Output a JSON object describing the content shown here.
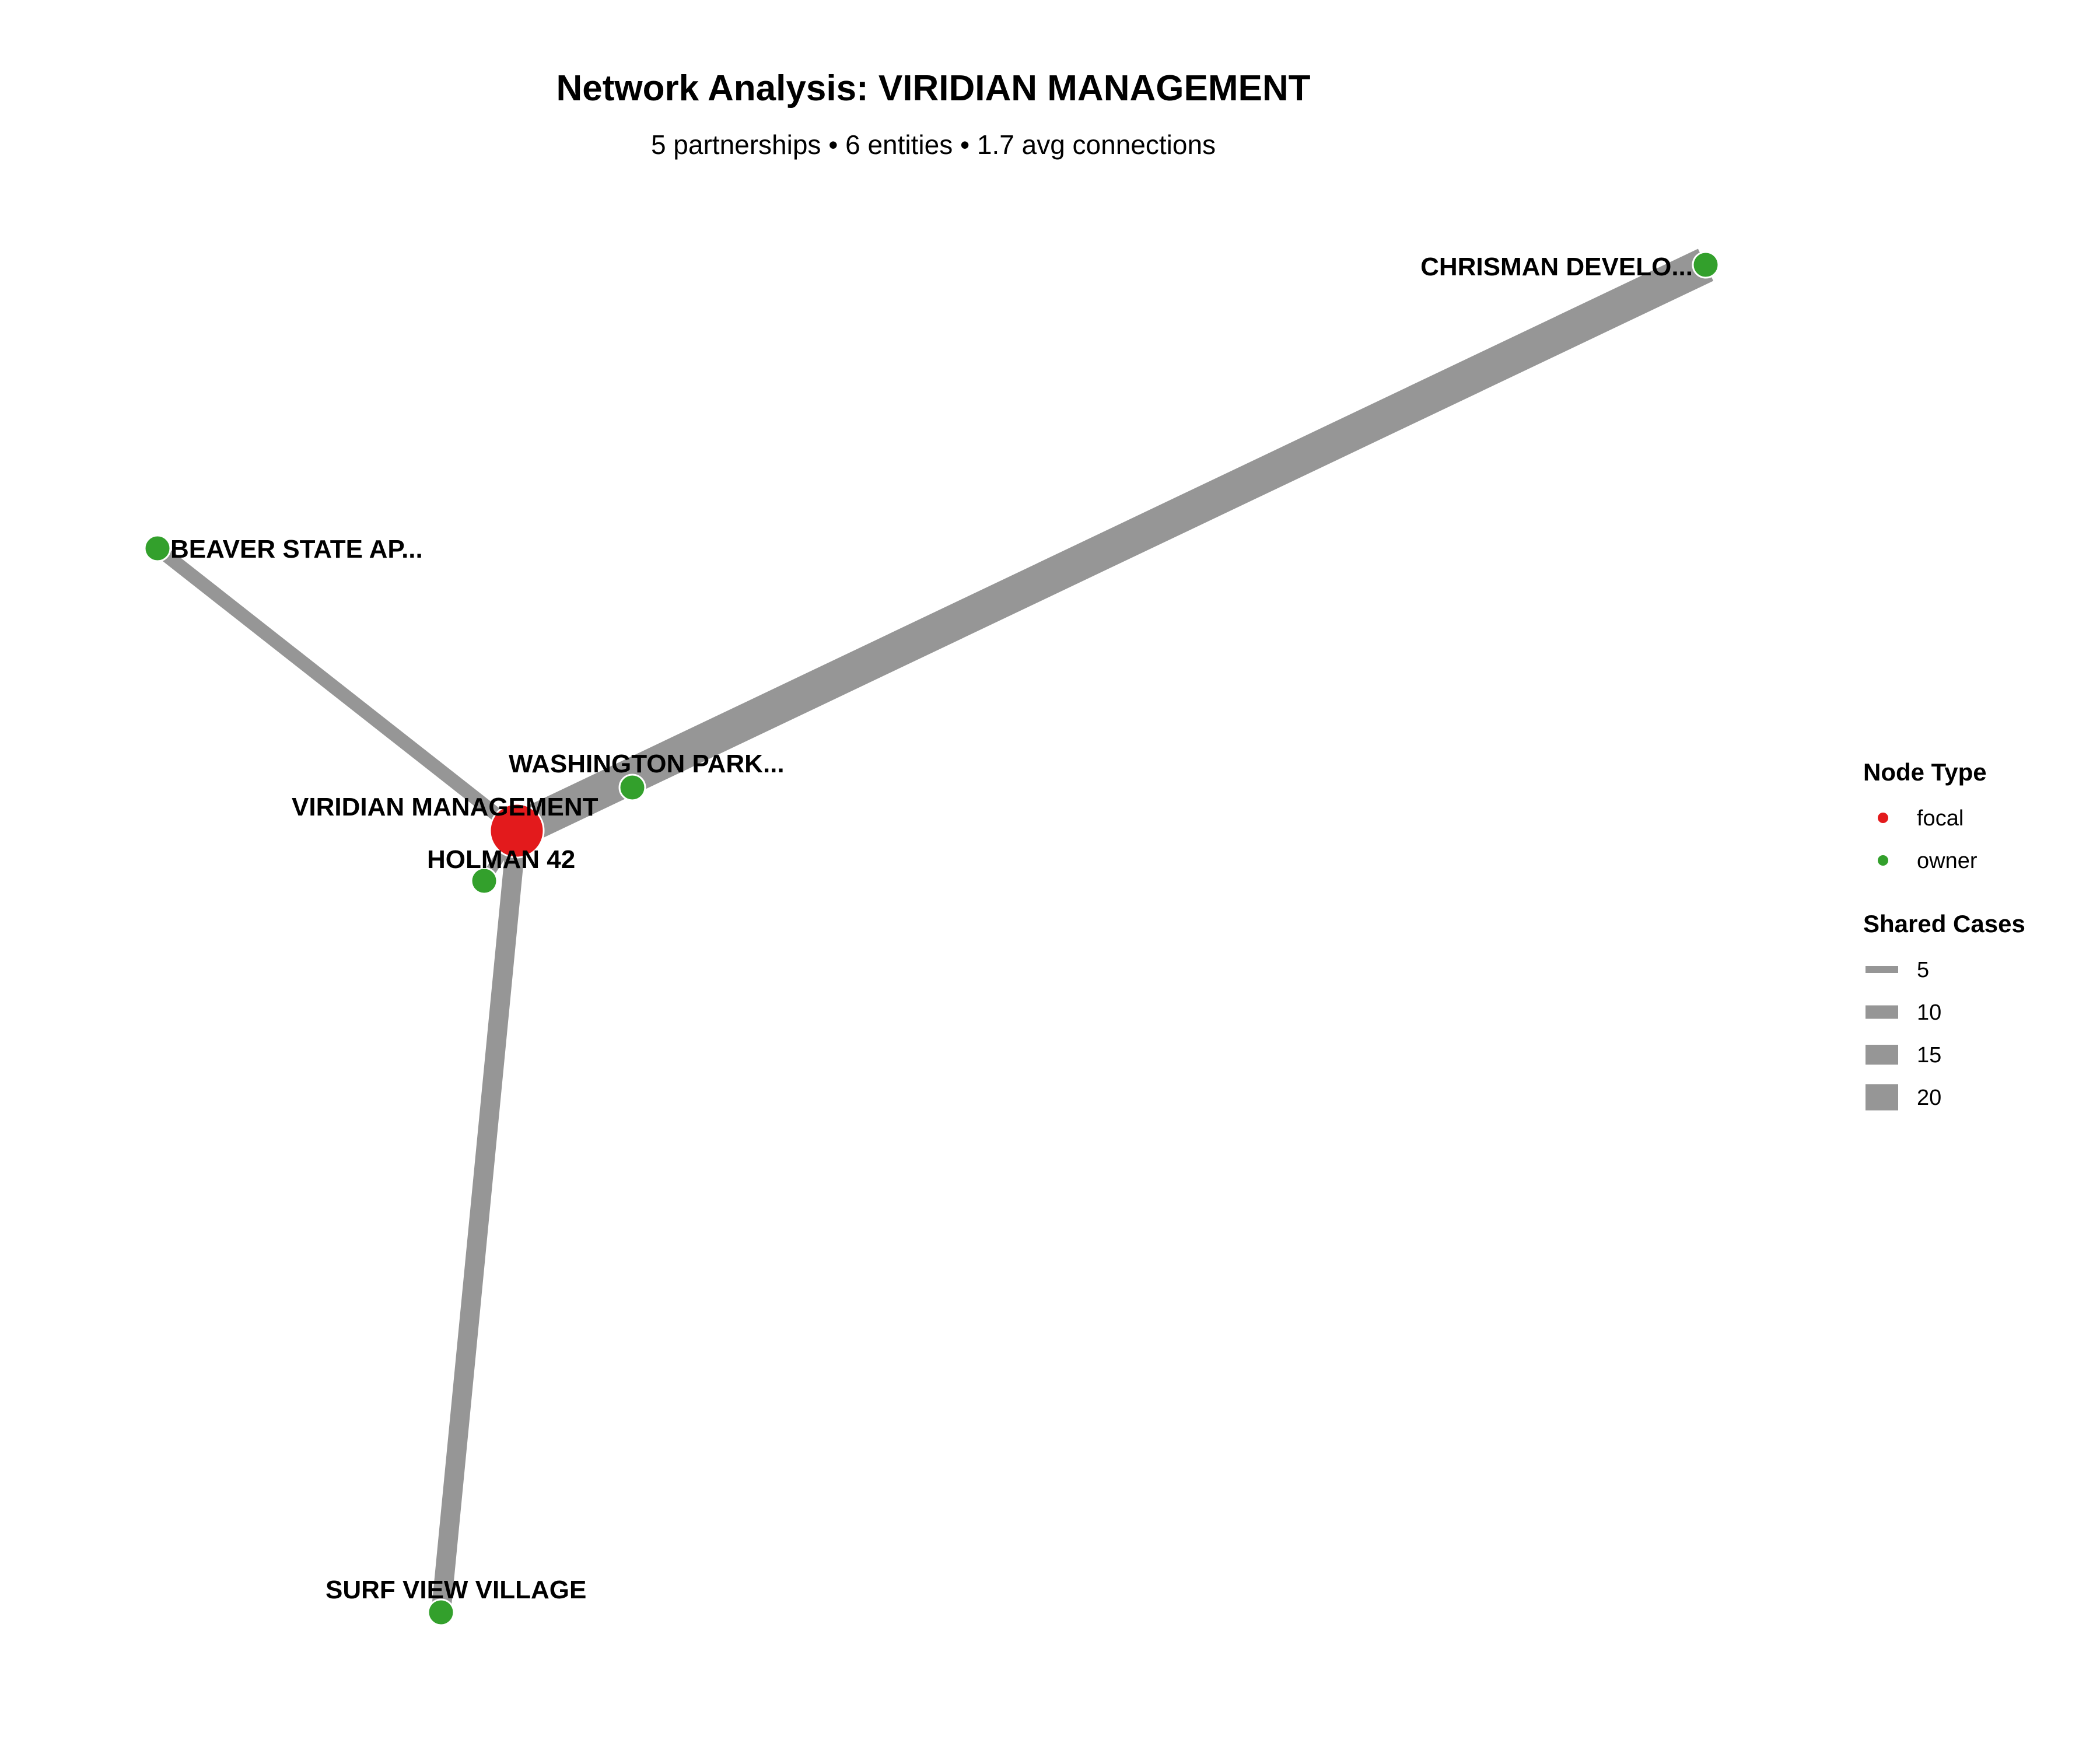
{
  "header": {
    "title": "Network Analysis: VIRIDIAN MANAGEMENT",
    "subtitle": "5 partnerships • 6 entities • 1.7 avg connections"
  },
  "colors": {
    "focal": "#e31a1c",
    "owner": "#33a02c",
    "edge": "#969696",
    "background": "#ffffff"
  },
  "nodes": [
    {
      "id": "viridian",
      "label": "VIRIDIAN MANAGEMENT",
      "type": "focal"
    },
    {
      "id": "chrisman",
      "label": "CHRISMAN DEVELO...",
      "type": "owner"
    },
    {
      "id": "beaver",
      "label": "BEAVER STATE AP...",
      "type": "owner"
    },
    {
      "id": "washington",
      "label": "WASHINGTON PARK...",
      "type": "owner"
    },
    {
      "id": "holman",
      "label": "HOLMAN 42",
      "type": "owner"
    },
    {
      "id": "surfview",
      "label": "SURF VIEW VILLAGE",
      "type": "owner"
    }
  ],
  "edges": [
    {
      "source": "viridian",
      "target": "chrisman",
      "shared_cases": 22
    },
    {
      "source": "viridian",
      "target": "beaver",
      "shared_cases": 7
    },
    {
      "source": "viridian",
      "target": "washington",
      "shared_cases": 5
    },
    {
      "source": "viridian",
      "target": "holman",
      "shared_cases": 5
    },
    {
      "source": "viridian",
      "target": "surfview",
      "shared_cases": 11
    }
  ],
  "legend": {
    "node_type": {
      "title": "Node Type",
      "items": [
        {
          "label": "focal",
          "color": "#e31a1c"
        },
        {
          "label": "owner",
          "color": "#33a02c"
        }
      ]
    },
    "shared_cases": {
      "title": "Shared Cases",
      "items": [
        {
          "label": "5",
          "value": 5
        },
        {
          "label": "10",
          "value": 10
        },
        {
          "label": "15",
          "value": 15
        },
        {
          "label": "20",
          "value": 20
        }
      ]
    }
  }
}
